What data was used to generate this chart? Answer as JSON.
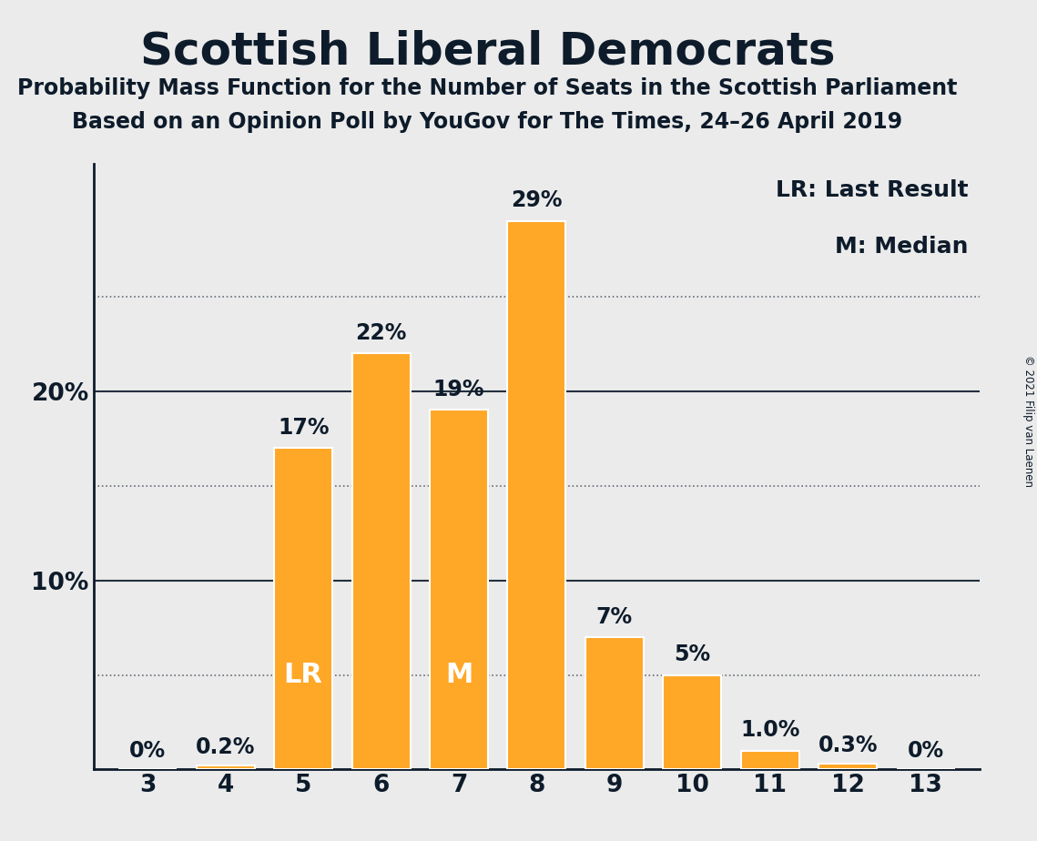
{
  "title": "Scottish Liberal Democrats",
  "subtitle1": "Probability Mass Function for the Number of Seats in the Scottish Parliament",
  "subtitle2": "Based on an Opinion Poll by YouGov for The Times, 24–26 April 2019",
  "copyright": "© 2021 Filip van Laenen",
  "categories": [
    3,
    4,
    5,
    6,
    7,
    8,
    9,
    10,
    11,
    12,
    13
  ],
  "values": [
    0.0,
    0.2,
    17.0,
    22.0,
    19.0,
    29.0,
    7.0,
    5.0,
    1.0,
    0.3,
    0.0
  ],
  "bar_labels": [
    "0%",
    "0.2%",
    "17%",
    "22%",
    "19%",
    "29%",
    "7%",
    "5%",
    "1.0%",
    "0.3%",
    "0%"
  ],
  "bar_color": "#FFA726",
  "background_color": "#EBEBEB",
  "text_color": "#0D1B2A",
  "yticks": [
    10,
    20
  ],
  "ytick_labels": [
    "10%",
    "20%"
  ],
  "ylim": [
    0,
    32
  ],
  "dotted_lines": [
    5,
    15,
    25
  ],
  "solid_lines": [
    10,
    20
  ],
  "lr_bar": 5,
  "median_bar": 7,
  "legend_lr": "LR: Last Result",
  "legend_m": "M: Median",
  "title_fontsize": 36,
  "subtitle_fontsize": 17,
  "bar_label_fontsize": 17,
  "axis_label_fontsize": 19,
  "inner_label_fontsize": 22,
  "legend_fontsize": 18
}
